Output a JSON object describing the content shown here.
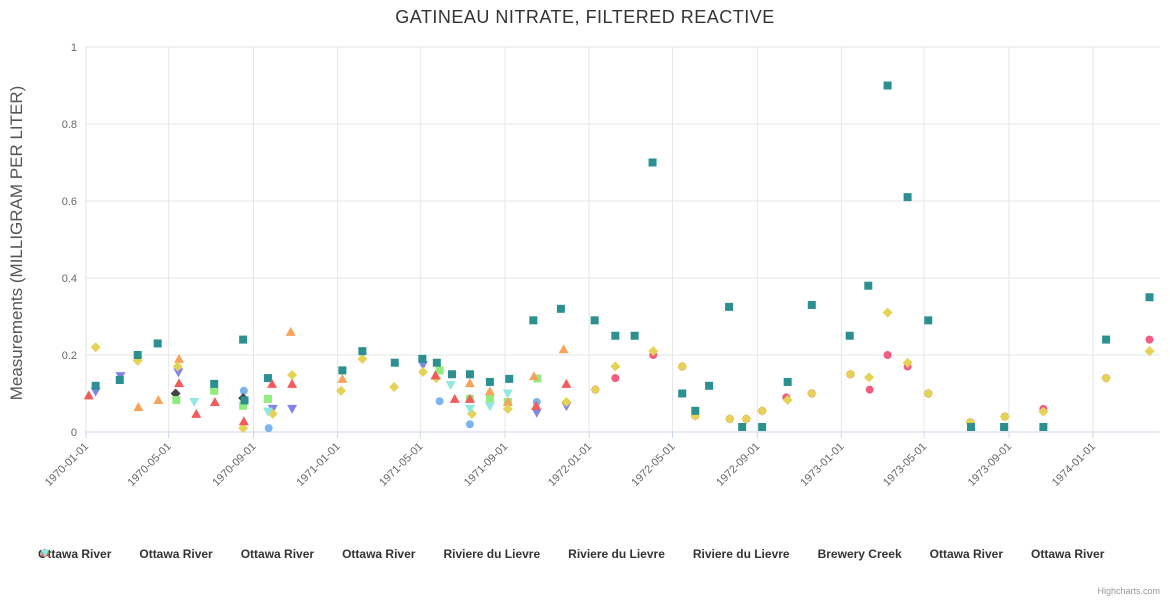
{
  "credit": "Highcharts.com",
  "style": {
    "grid_color": "#e6e6e6",
    "axis_line_color": "#ccd6eb",
    "title_color": "#333333",
    "axis_label_color": "#666666",
    "legend_text_color": "#333333"
  },
  "chart_data": {
    "type": "scatter",
    "title": "GATINEAU NITRATE, FILTERED REACTIVE",
    "xlabel": "",
    "ylabel": "Measurements (MILLIGRAM PER LITER)",
    "ylim": [
      0,
      1
    ],
    "yticks": [
      0,
      0.2,
      0.4,
      0.6,
      0.8,
      1
    ],
    "ytick_labels": [
      "0",
      "0.2",
      "0.4",
      "0.6",
      "0.8",
      "1"
    ],
    "xticks": [
      "1970-01-01",
      "1970-05-01",
      "1970-09-01",
      "1971-01-01",
      "1971-05-01",
      "1971-09-01",
      "1972-01-01",
      "1972-05-01",
      "1972-09-01",
      "1973-01-01",
      "1973-05-01",
      "1973-09-01",
      "1974-01-01"
    ],
    "x_range": [
      "1970-01-01",
      "1974-04-15"
    ],
    "grid": true,
    "legend_position": "bottom",
    "series": [
      {
        "name": "Ottawa River",
        "marker": "circle",
        "color": "#7cb5ec",
        "data": [
          [
            "1970-08-18",
            0.107
          ],
          [
            "1970-09-23",
            0.01
          ],
          [
            "1971-05-29",
            0.08
          ],
          [
            "1971-07-12",
            0.02
          ],
          [
            "1971-10-17",
            0.078
          ]
        ]
      },
      {
        "name": "Ottawa River",
        "marker": "diamond",
        "color": "#434348",
        "data": [
          [
            "1970-05-11",
            0.1
          ],
          [
            "1970-08-17",
            0.088
          ]
        ]
      },
      {
        "name": "Ottawa River",
        "marker": "square",
        "color": "#90ed7d",
        "data": [
          [
            "1970-05-12",
            0.083
          ],
          [
            "1970-07-06",
            0.107
          ],
          [
            "1970-08-17",
            0.068
          ],
          [
            "1970-09-22",
            0.086
          ],
          [
            "1971-05-29",
            0.16
          ],
          [
            "1971-07-12",
            0.086
          ],
          [
            "1971-08-10",
            0.086
          ],
          [
            "1971-09-05",
            0.078
          ],
          [
            "1971-10-18",
            0.139
          ]
        ]
      },
      {
        "name": "Ottawa River",
        "marker": "triangle",
        "color": "#f7a35c",
        "data": [
          [
            "1970-03-18",
            0.065
          ],
          [
            "1970-04-16",
            0.083
          ],
          [
            "1970-05-16",
            0.19
          ],
          [
            "1970-10-25",
            0.26
          ],
          [
            "1971-01-08",
            0.138
          ],
          [
            "1971-05-23",
            0.147
          ],
          [
            "1971-07-12",
            0.127
          ],
          [
            "1971-08-10",
            0.106
          ],
          [
            "1971-09-05",
            0.078
          ],
          [
            "1971-10-13",
            0.145
          ],
          [
            "1971-11-25",
            0.215
          ]
        ]
      },
      {
        "name": "Riviere du Lievre",
        "marker": "triangle-down",
        "color": "#8085e9",
        "data": [
          [
            "1970-01-15",
            0.105
          ],
          [
            "1970-02-20",
            0.145
          ],
          [
            "1970-05-15",
            0.155
          ],
          [
            "1970-09-29",
            0.06
          ],
          [
            "1970-10-27",
            0.06
          ],
          [
            "1971-05-05",
            0.174
          ],
          [
            "1971-10-17",
            0.05
          ],
          [
            "1971-11-29",
            0.067
          ]
        ]
      },
      {
        "name": "Riviere du Lievre",
        "marker": "circle",
        "color": "#f15c80",
        "data": [
          [
            "1972-01-10",
            0.11
          ],
          [
            "1972-02-08",
            0.14
          ],
          [
            "1972-04-03",
            0.2
          ],
          [
            "1972-05-15",
            0.17
          ],
          [
            "1972-06-03",
            0.042
          ],
          [
            "1972-07-23",
            0.034
          ],
          [
            "1972-08-16",
            0.034
          ],
          [
            "1972-09-08",
            0.055
          ],
          [
            "1972-10-13",
            0.09
          ],
          [
            "1972-11-19",
            0.1
          ],
          [
            "1973-01-14",
            0.15
          ],
          [
            "1973-02-11",
            0.11
          ],
          [
            "1973-03-09",
            0.2
          ],
          [
            "1973-04-07",
            0.17
          ],
          [
            "1973-05-07",
            0.1
          ],
          [
            "1973-07-07",
            0.025
          ],
          [
            "1973-08-26",
            0.04
          ],
          [
            "1973-10-21",
            0.06
          ],
          [
            "1974-01-20",
            0.14
          ],
          [
            "1974-03-24",
            0.24
          ]
        ]
      },
      {
        "name": "Riviere du Lievre",
        "marker": "diamond",
        "color": "#e4d354",
        "data": [
          [
            "1970-01-15",
            0.22
          ],
          [
            "1970-03-17",
            0.185
          ],
          [
            "1970-05-14",
            0.17
          ],
          [
            "1970-08-17",
            0.01
          ],
          [
            "1970-09-29",
            0.047
          ],
          [
            "1970-10-27",
            0.148
          ],
          [
            "1971-01-06",
            0.107
          ],
          [
            "1971-02-06",
            0.19
          ],
          [
            "1971-03-24",
            0.117
          ],
          [
            "1971-05-05",
            0.156
          ],
          [
            "1971-05-24",
            0.14
          ],
          [
            "1971-07-15",
            0.047
          ],
          [
            "1971-09-05",
            0.06
          ],
          [
            "1971-11-29",
            0.078
          ],
          [
            "1972-01-10",
            0.11
          ],
          [
            "1972-02-08",
            0.17
          ],
          [
            "1972-04-03",
            0.21
          ],
          [
            "1972-05-15",
            0.17
          ],
          [
            "1972-06-03",
            0.042
          ],
          [
            "1972-07-23",
            0.034
          ],
          [
            "1972-08-16",
            0.034
          ],
          [
            "1972-09-08",
            0.055
          ],
          [
            "1972-10-15",
            0.083
          ],
          [
            "1972-11-19",
            0.1
          ],
          [
            "1973-01-14",
            0.15
          ],
          [
            "1973-02-10",
            0.142
          ],
          [
            "1973-03-09",
            0.31
          ],
          [
            "1973-04-07",
            0.18
          ],
          [
            "1973-05-07",
            0.1
          ],
          [
            "1973-07-07",
            0.025
          ],
          [
            "1973-08-26",
            0.04
          ],
          [
            "1973-10-21",
            0.053
          ],
          [
            "1974-01-20",
            0.14
          ],
          [
            "1974-03-24",
            0.21
          ]
        ]
      },
      {
        "name": "Brewery Creek",
        "marker": "square",
        "color": "#2b908f",
        "data": [
          [
            "1970-01-15",
            0.12
          ],
          [
            "1970-02-19",
            0.135
          ],
          [
            "1970-03-17",
            0.2
          ],
          [
            "1970-04-15",
            0.23
          ],
          [
            "1970-07-06",
            0.125
          ],
          [
            "1970-08-17",
            0.24
          ],
          [
            "1970-08-19",
            0.082
          ],
          [
            "1970-09-22",
            0.14
          ],
          [
            "1971-01-08",
            0.16
          ],
          [
            "1971-02-06",
            0.21
          ],
          [
            "1971-03-25",
            0.18
          ],
          [
            "1971-05-04",
            0.19
          ],
          [
            "1971-05-25",
            0.18
          ],
          [
            "1971-06-16",
            0.15
          ],
          [
            "1971-07-12",
            0.15
          ],
          [
            "1971-08-10",
            0.13
          ],
          [
            "1971-09-07",
            0.138
          ],
          [
            "1971-10-12",
            0.29
          ],
          [
            "1971-11-21",
            0.32
          ],
          [
            "1972-01-09",
            0.29
          ],
          [
            "1972-02-08",
            0.25
          ],
          [
            "1972-03-07",
            0.25
          ],
          [
            "1972-04-02",
            0.7
          ],
          [
            "1972-05-15",
            0.1
          ],
          [
            "1972-06-03",
            0.055
          ],
          [
            "1972-06-23",
            0.12
          ],
          [
            "1972-07-22",
            0.325
          ],
          [
            "1972-08-10",
            0.013
          ],
          [
            "1972-09-08",
            0.013
          ],
          [
            "1972-10-15",
            0.13
          ],
          [
            "1972-11-19",
            0.33
          ],
          [
            "1973-01-13",
            0.25
          ],
          [
            "1973-02-09",
            0.38
          ],
          [
            "1973-03-09",
            0.9
          ],
          [
            "1973-04-07",
            0.61
          ],
          [
            "1973-05-07",
            0.29
          ],
          [
            "1973-07-08",
            0.013
          ],
          [
            "1973-08-25",
            0.013
          ],
          [
            "1973-10-21",
            0.013
          ],
          [
            "1974-01-20",
            0.24
          ],
          [
            "1974-03-24",
            0.35
          ]
        ]
      },
      {
        "name": "Ottawa River",
        "marker": "triangle",
        "color": "#f45b5b",
        "data": [
          [
            "1970-01-05",
            0.095
          ],
          [
            "1970-05-16",
            0.127
          ],
          [
            "1970-06-10",
            0.047
          ],
          [
            "1970-07-07",
            0.078
          ],
          [
            "1970-08-18",
            0.028
          ],
          [
            "1970-09-28",
            0.125
          ],
          [
            "1970-10-27",
            0.125
          ],
          [
            "1971-05-23",
            0.147
          ],
          [
            "1971-06-20",
            0.086
          ],
          [
            "1971-07-12",
            0.086
          ],
          [
            "1971-10-16",
            0.068
          ],
          [
            "1971-11-29",
            0.125
          ]
        ]
      },
      {
        "name": "Ottawa River",
        "marker": "triangle-down",
        "color": "#91e8e1",
        "data": [
          [
            "1970-06-07",
            0.078
          ],
          [
            "1970-09-22",
            0.053
          ],
          [
            "1971-06-14",
            0.122
          ],
          [
            "1971-07-12",
            0.06
          ],
          [
            "1971-08-10",
            0.067
          ],
          [
            "1971-09-05",
            0.1
          ]
        ]
      }
    ]
  }
}
